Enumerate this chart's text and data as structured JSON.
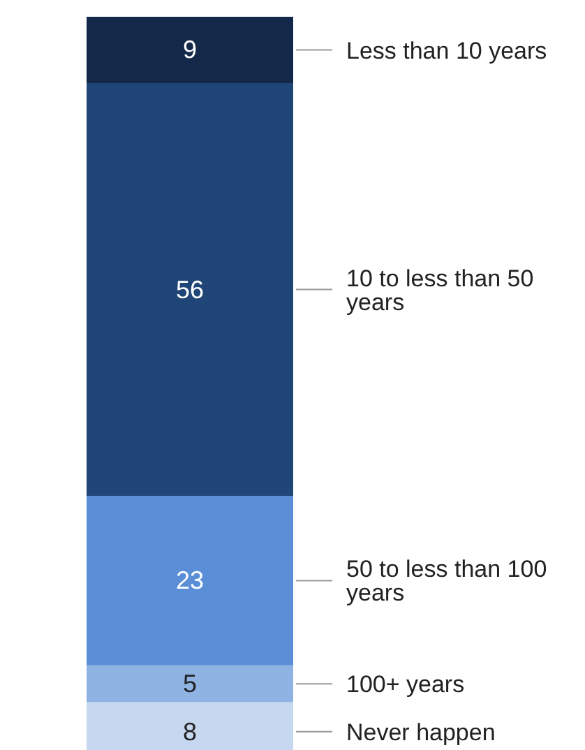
{
  "chart_data": {
    "type": "bar",
    "stacked": true,
    "categories": [
      null
    ],
    "data_labels": true,
    "series": [
      {
        "name": "Never happen",
        "color": "#c6d8f0",
        "values": [
          8
        ]
      },
      {
        "name": "100+ years",
        "color": "#8fb3e3",
        "values": [
          5
        ]
      },
      {
        "name": "50 to less than 100 years",
        "color": "#5a8fd8",
        "values": [
          23
        ]
      },
      {
        "name": "10 to less than 50 years",
        "color": "#1f4677",
        "values": [
          56
        ]
      },
      {
        "name": "Less than 10 years",
        "color": "#14284a",
        "values": [
          9
        ]
      }
    ]
  }
}
